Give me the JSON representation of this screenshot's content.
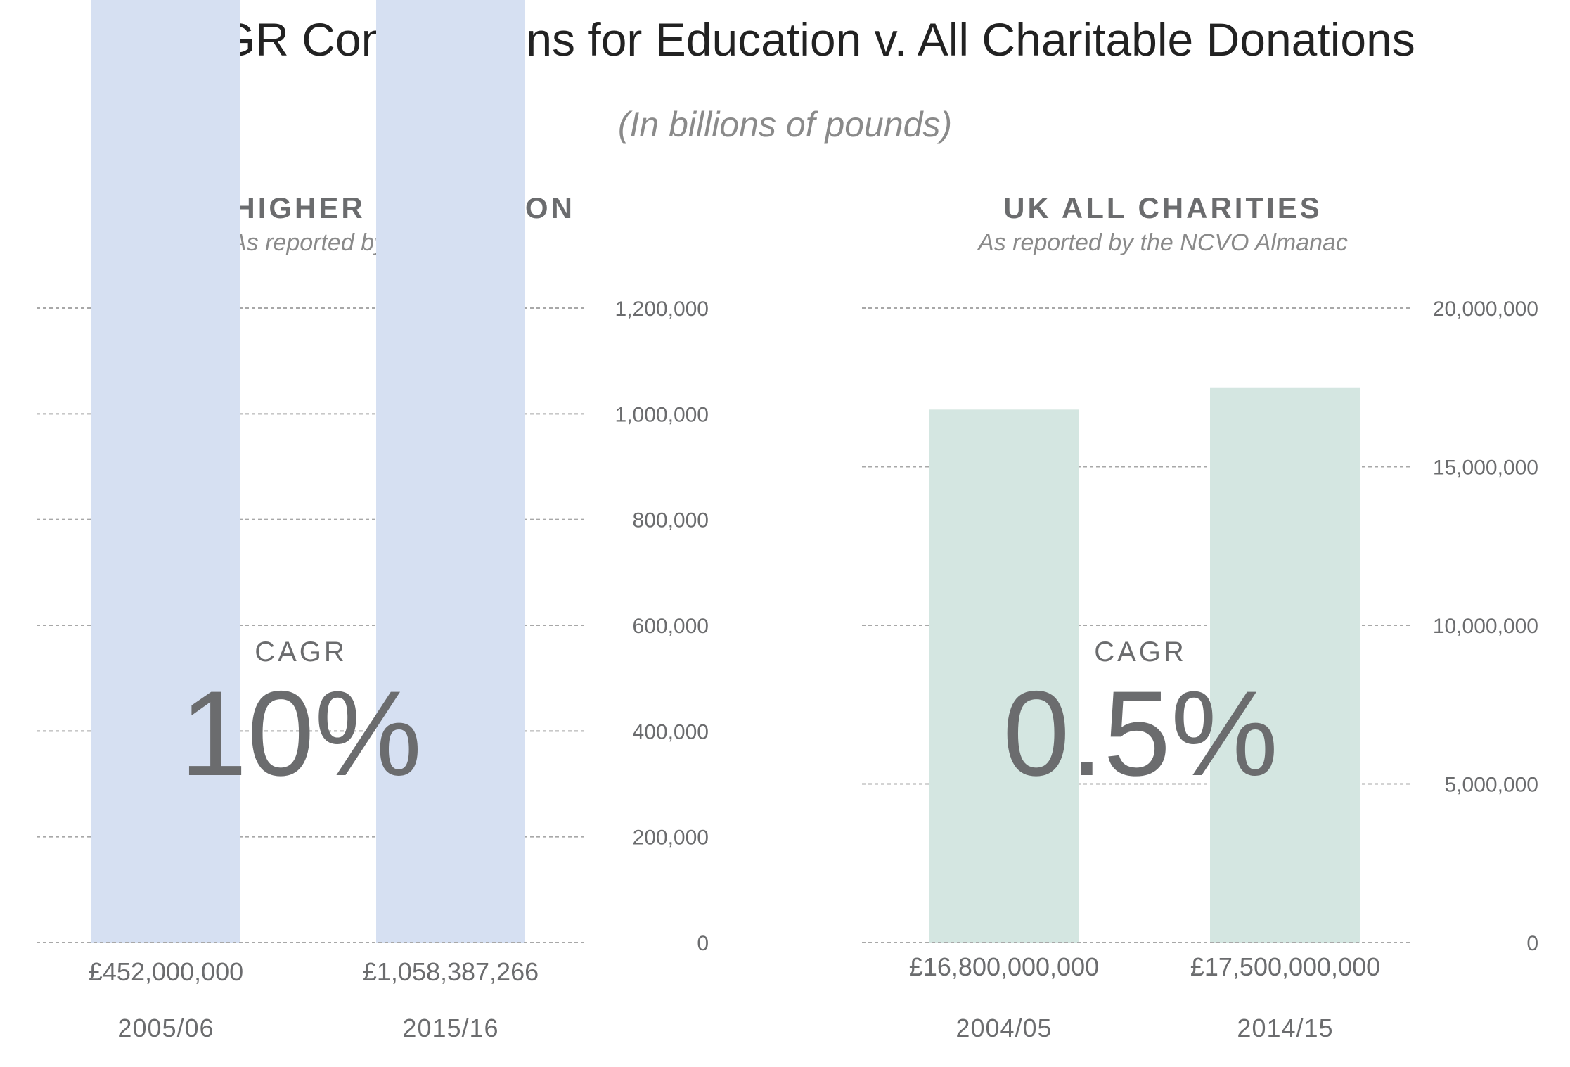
{
  "title": "CAGR Comparisons for Education v. All Charitable Donations",
  "subtitle": "(In billions of pounds)",
  "chart_data": [
    {
      "type": "bar",
      "title": "UK HIGHER EDUCATION",
      "subtitle": "As reported by Ross CASE",
      "categories": [
        "2005/06",
        "2015/16"
      ],
      "values": [
        452000000,
        1058387266
      ],
      "value_labels": [
        "£452,000,000",
        "£1,058,387,266"
      ],
      "ylim": [
        0,
        1200000
      ],
      "yticks": [
        0,
        200000,
        400000,
        600000,
        800000,
        1000000,
        1200000
      ],
      "ytick_labels": [
        "0",
        "200,000",
        "400,000",
        "600,000",
        "800,000",
        "1,000,000",
        "1,200,000"
      ],
      "y_axis_side": "right",
      "grid": true,
      "bar_color": "#d6e0f2",
      "cagr_label": "CAGR",
      "cagr_value": "10%"
    },
    {
      "type": "bar",
      "title": "UK ALL CHARITIES",
      "subtitle": "As reported by the NCVO Almanac",
      "categories": [
        "2004/05",
        "2014/15"
      ],
      "values": [
        16800000000,
        17500000000
      ],
      "value_labels": [
        "£16,800,000,000",
        "£17,500,000,000"
      ],
      "ylim": [
        0,
        20000000
      ],
      "yticks": [
        0,
        5000000,
        10000000,
        15000000,
        20000000
      ],
      "ytick_labels": [
        "0",
        "5,000,000",
        "10,000,000",
        "15,000,000",
        "20,000,000"
      ],
      "y_axis_side": "right",
      "grid": true,
      "bar_color": "#d4e6e1",
      "cagr_label": "CAGR",
      "cagr_value": "0.5%"
    }
  ]
}
